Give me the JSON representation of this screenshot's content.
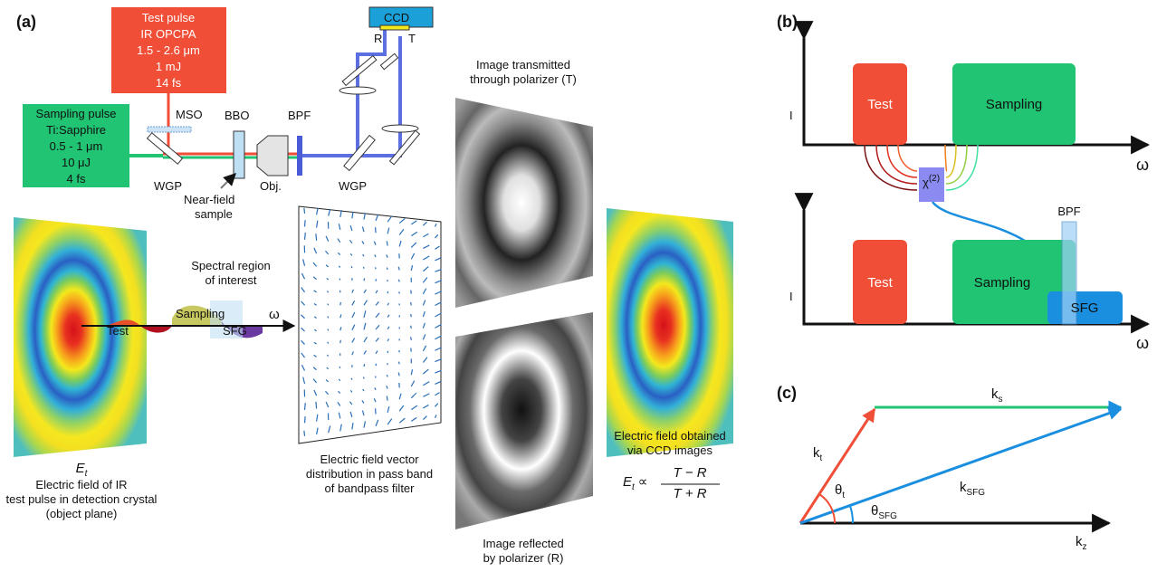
{
  "panels": {
    "a": "(a)",
    "b": "(b)",
    "c": "(c)"
  },
  "setup": {
    "test_pulse": [
      "Test pulse",
      "IR OPCPA",
      "1.5 - 2.6 μm",
      "1 mJ",
      "14 fs"
    ],
    "sampling_pulse": [
      "Sampling pulse",
      "Ti:Sapphire",
      "0.5 - 1 μm",
      "10 μJ",
      "4 fs"
    ],
    "mso": "MSO",
    "bbo": "BBO",
    "bpf": "BPF",
    "wgp_1": "WGP",
    "obj": "Obj.",
    "wgp_2": "WGP",
    "sample": [
      "Near-field",
      "sample"
    ],
    "ccd": "CCD",
    "r": "R",
    "t": "T"
  },
  "images": {
    "transmitted": [
      "Image transmitted",
      "through polarizer (T)"
    ],
    "reflected": [
      "Image reflected",
      "by polarizer (R)"
    ]
  },
  "field": {
    "symbol": "E",
    "symbol_sub": "t",
    "caption": [
      "Electric field of IR",
      "test pulse in detection crystal",
      "(object plane)"
    ],
    "spectral": [
      "Spectral region",
      "of interest"
    ],
    "test": "Test",
    "sampling": "Sampling",
    "sfg": "SFG",
    "omega": "ω"
  },
  "vector": {
    "caption": [
      "Electric field vector",
      "distribution in pass band",
      "of bandpass filter"
    ]
  },
  "result": {
    "caption": [
      "Electric field obtained",
      "via CCD images"
    ],
    "formula": {
      "lhs": "E",
      "lhs_sub": "t",
      "rel": "∝",
      "num": "T − R",
      "den": "T + R"
    }
  },
  "b": {
    "top": {
      "y": "I",
      "test": "Test",
      "sampling": "Sampling",
      "x": "ω"
    },
    "chi": "χ",
    "chi_sup": "(2)",
    "bottom": {
      "y": "I",
      "test": "Test",
      "sampling": "Sampling",
      "sfg": "SFG",
      "bpf": "BPF",
      "x": "ω"
    }
  },
  "c": {
    "ks": {
      "base": "k",
      "sub": "s"
    },
    "kt": {
      "base": "k",
      "sub": "t"
    },
    "theta_t": {
      "base": "θ",
      "sub": "t"
    },
    "ksfg": {
      "base": "k",
      "sub": "SFG"
    },
    "theta_sfg": {
      "base": "θ",
      "sub": "SFG"
    },
    "kz": {
      "base": "k",
      "sub": "z"
    }
  }
}
